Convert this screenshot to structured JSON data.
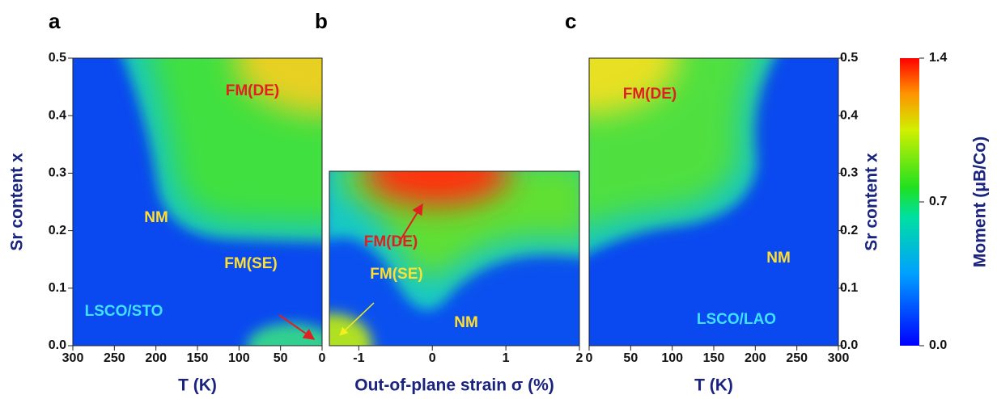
{
  "chart_data": [
    {
      "type": "heatmap",
      "panel_label": "a",
      "x_label": "T (K)",
      "y_label": "Sr content x",
      "xlim": [
        300,
        0
      ],
      "xticks": [
        300,
        250,
        200,
        150,
        100,
        50,
        0
      ],
      "ylim": [
        0,
        0.5
      ],
      "yticks": [
        {
          "value": 0,
          "label": "0.0"
        },
        {
          "value": 0.1,
          "label": "0.1"
        },
        {
          "value": 0.2,
          "label": "0.2"
        },
        {
          "value": 0.3,
          "label": "0.3"
        },
        {
          "value": 0.4,
          "label": "0.4"
        },
        {
          "value": 0.5,
          "label": "0.5"
        }
      ],
      "annotations": [
        "FM(DE)",
        "NM",
        "FM(SE)",
        "LSCO/STO"
      ]
    },
    {
      "type": "heatmap",
      "panel_label": "b",
      "x_label": "Out-of-plane strain σ (%)",
      "xlim": [
        -1.4,
        2
      ],
      "xticks": [
        -1,
        0,
        1,
        2
      ],
      "ylim": [
        0,
        0.3
      ],
      "annotations": [
        "FM(DE)",
        "FM(SE)",
        "NM"
      ]
    },
    {
      "type": "heatmap",
      "panel_label": "c",
      "x_label": "T (K)",
      "y_label": "Sr content x",
      "xlim": [
        0,
        300
      ],
      "xticks": [
        0,
        50,
        100,
        150,
        200,
        250,
        300
      ],
      "ylim": [
        0,
        0.5
      ],
      "yticks": [
        {
          "value": 0,
          "label": "0.0"
        },
        {
          "value": 0.1,
          "label": "0.1"
        },
        {
          "value": 0.2,
          "label": "0.2"
        },
        {
          "value": 0.3,
          "label": "0.3"
        },
        {
          "value": 0.4,
          "label": "0.4"
        },
        {
          "value": 0.5,
          "label": "0.5"
        }
      ],
      "annotations": [
        "FM(DE)",
        "NM",
        "LSCO/LAO"
      ]
    },
    {
      "type": "colorbar",
      "label": "Moment  (μB/Co)",
      "ylim": [
        0,
        1.4
      ],
      "yticks": [
        {
          "value": 0,
          "label": "0.0"
        },
        {
          "value": 0.7,
          "label": "0.7"
        },
        {
          "value": 1.4,
          "label": "1.4"
        }
      ]
    }
  ]
}
